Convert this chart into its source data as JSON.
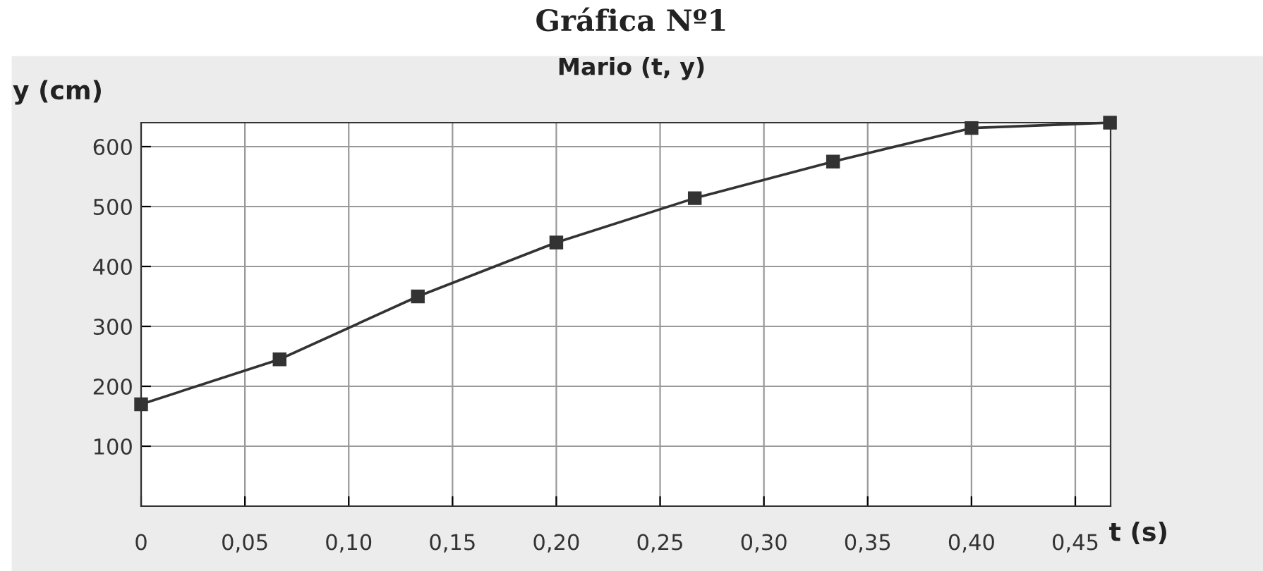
{
  "chart_data": {
    "type": "line",
    "title": "Gráfica Nº1",
    "subtitle": "Mario (t, y)",
    "xlabel": "t (s)",
    "ylabel": "y (cm)",
    "x": [
      0,
      0.0667,
      0.1333,
      0.2,
      0.2667,
      0.3333,
      0.4,
      0.4667
    ],
    "series": [
      {
        "color": "#333333",
        "values": [
          170,
          245,
          350,
          440,
          514,
          575,
          631,
          640
        ]
      }
    ],
    "xlim": [
      0,
      0.467
    ],
    "ylim": [
      0,
      640
    ],
    "xticks": [
      0,
      {
        "value": 0.05,
        "label": "0,05"
      },
      {
        "value": 0.1,
        "label": "0,10"
      },
      {
        "value": 0.15,
        "label": "0,15"
      },
      {
        "value": 0.2,
        "label": "0,20"
      },
      {
        "value": 0.25,
        "label": "0,25"
      },
      {
        "value": 0.3,
        "label": "0,30"
      },
      {
        "value": 0.35,
        "label": "0,35"
      },
      {
        "value": 0.4,
        "label": "0,40"
      },
      {
        "value": 0.45,
        "label": "0,45"
      }
    ],
    "yticks": [
      100,
      200,
      300,
      400,
      500,
      600
    ],
    "grid": true,
    "marker": "square",
    "line_style": "solid"
  }
}
